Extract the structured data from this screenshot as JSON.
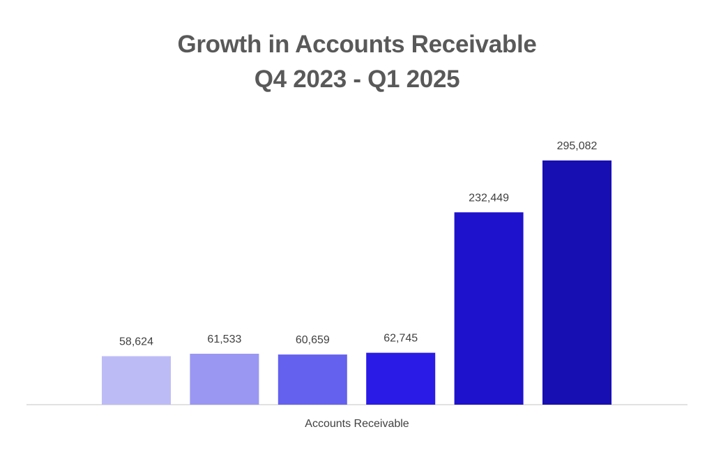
{
  "chart_data": {
    "type": "bar",
    "title": "Growth in Accounts Receivable",
    "subtitle": "Q4 2023 - Q1 2025",
    "xlabel": "Accounts Receivable",
    "ylabel": "",
    "ylim": [
      0,
      320000
    ],
    "grid": false,
    "legend": "none",
    "series": [
      {
        "values": [
          58624,
          61533,
          60659,
          62745,
          232449,
          295082
        ],
        "labels": [
          "58,624",
          "61,533",
          "60,659",
          "62,745",
          "232,449",
          "295,082"
        ],
        "colors": [
          "#BDBBF6",
          "#9A97F3",
          "#6461EE",
          "#2A1BE6",
          "#1E12CC",
          "#180FB3"
        ]
      }
    ],
    "axis_color": "#D9D9D9"
  }
}
